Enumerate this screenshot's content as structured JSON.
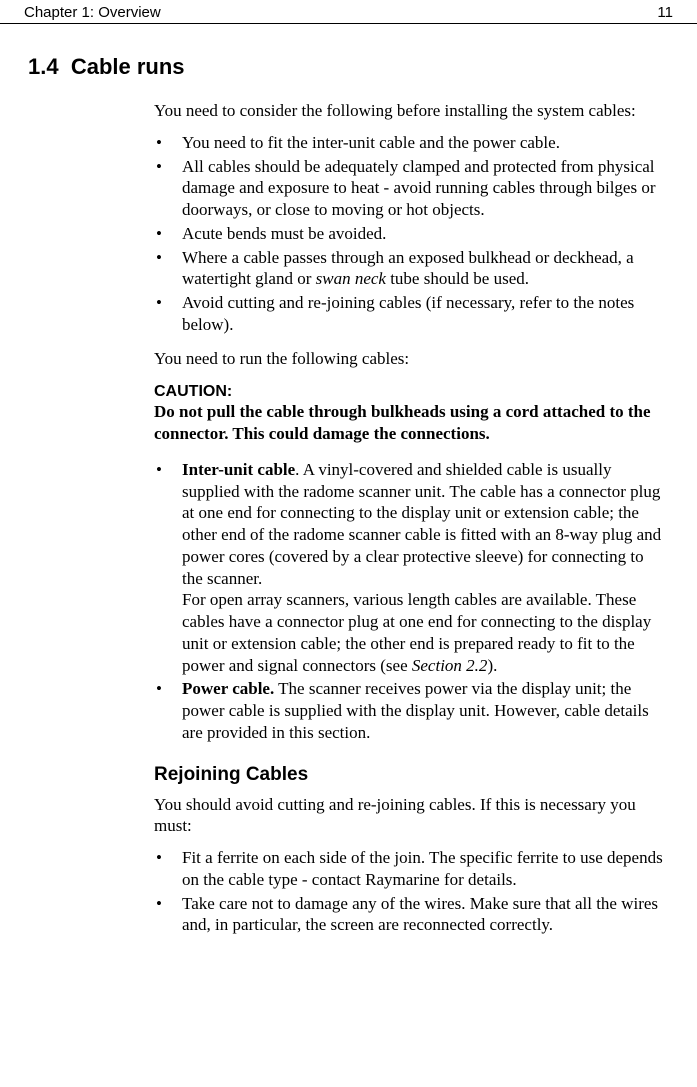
{
  "header": {
    "chapter": "Chapter 1: Overview",
    "page": "11"
  },
  "section": {
    "number": "1.4",
    "title": "Cable runs",
    "intro": "You need to consider the following before installing the system cables:",
    "bullets1": [
      "You need to fit the inter-unit cable and the power cable.",
      "All cables should be adequately clamped and protected from physical damage and exposure to heat - avoid running cables through bilges or doorways, or close to moving or hot objects.",
      "Acute bends must be avoided.",
      {
        "pre": "Where a cable passes through an exposed bulkhead or deckhead, a watertight gland or ",
        "italic": "swan neck",
        "post": " tube should be used."
      },
      "Avoid cutting and re-joining cables (if necessary, refer to the notes below)."
    ],
    "followUp": "You need to run the following cables:",
    "cautionLabel": "CAUTION:",
    "cautionText": "Do not pull the cable through bulkheads using a cord attached to the connector. This could damage the connections.",
    "bullets2": [
      {
        "bold": "Inter-unit cable",
        "afterBold": ". A vinyl-covered and shielded cable is usually supplied with the radome scanner unit. The cable has a connector plug at one end for connecting to the display unit or extension cable; the other end of the radome scanner cable is fitted with an 8-way plug and power cores (covered by a clear protective sleeve) for connecting to the scanner.",
        "secondPara": "For open array scanners, various length cables are available. These cables have a connector plug at one end for connecting to the display unit or extension cable; the other end is prepared ready to fit to the power and signal connectors (see ",
        "italicRef": "Section 2.2",
        "afterItalic": ")."
      },
      {
        "bold": "Power cable.",
        "afterBold": " The scanner receives power via the display unit; the power cable is supplied with the display unit. However, cable details are provided in this section."
      }
    ],
    "subHeading": "Rejoining Cables",
    "rejoinIntro": "You should avoid cutting and re-joining cables. If this is necessary you must:",
    "bullets3": [
      "Fit a ferrite on each side of the join. The specific ferrite to use depends on the cable type - contact Raymarine for details.",
      "Take care not to damage any of the wires. Make sure that all the wires and, in particular, the screen are reconnected correctly."
    ]
  }
}
